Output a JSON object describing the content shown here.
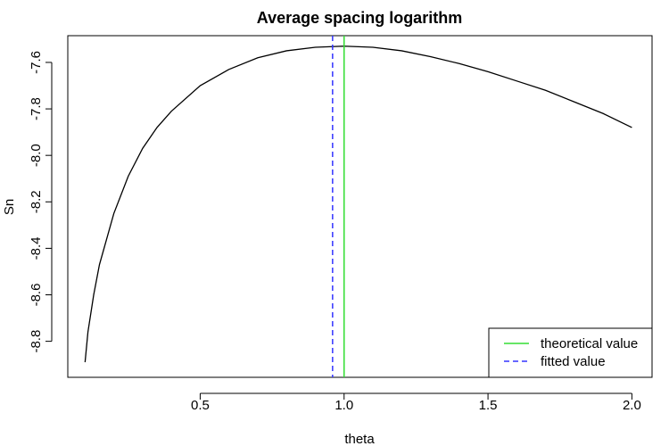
{
  "chart_data": {
    "type": "line",
    "title": "Average spacing logarithm",
    "xlabel": "theta",
    "ylabel": "Sn",
    "xlim": [
      0.04,
      2.07
    ],
    "ylim": [
      -8.955,
      -7.485
    ],
    "xticks": [
      0.5,
      1.0,
      1.5,
      2.0
    ],
    "xtick_labels": [
      "0.5",
      "1.0",
      "1.5",
      "2.0"
    ],
    "yticks": [
      -8.8,
      -8.6,
      -8.4,
      -8.2,
      -8.0,
      -7.8,
      -7.6
    ],
    "ytick_labels": [
      "-8.8",
      "-8.6",
      "-8.4",
      "-8.2",
      "-8.0",
      "-7.8",
      "-7.6"
    ],
    "grid": false,
    "legend_position": "bottom-right",
    "series": [
      {
        "name": "Sn",
        "color": "#000000",
        "style": "solid",
        "x": [
          0.1,
          0.11,
          0.13,
          0.15,
          0.2,
          0.25,
          0.3,
          0.35,
          0.4,
          0.5,
          0.6,
          0.7,
          0.8,
          0.9,
          1.0,
          1.1,
          1.2,
          1.3,
          1.4,
          1.5,
          1.6,
          1.7,
          1.8,
          1.9,
          2.0
        ],
        "y": [
          -8.89,
          -8.76,
          -8.6,
          -8.47,
          -8.25,
          -8.09,
          -7.97,
          -7.88,
          -7.81,
          -7.7,
          -7.63,
          -7.58,
          -7.55,
          -7.535,
          -7.53,
          -7.535,
          -7.55,
          -7.575,
          -7.605,
          -7.64,
          -7.68,
          -7.72,
          -7.77,
          -7.82,
          -7.88
        ]
      }
    ],
    "vlines": [
      {
        "name": "theoretical value",
        "x": 1.0,
        "color": "#33dd33",
        "style": "solid"
      },
      {
        "name": "fitted value",
        "x": 0.96,
        "color": "#3333ff",
        "style": "dashed"
      }
    ]
  }
}
